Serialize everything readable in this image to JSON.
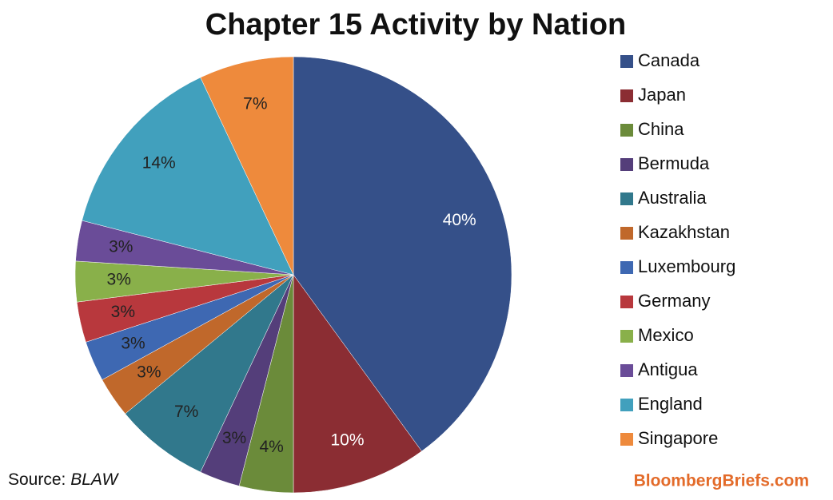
{
  "chart_data": {
    "type": "pie",
    "title": "Chapter 15 Activity by Nation",
    "categories": [
      "Canada",
      "Japan",
      "China",
      "Bermuda",
      "Australia",
      "Kazakhstan",
      "Luxembourg",
      "Germany",
      "Mexico",
      "Antigua",
      "England",
      "Singapore"
    ],
    "values": [
      40,
      10,
      4,
      3,
      7,
      3,
      3,
      3,
      3,
      3,
      14,
      7
    ],
    "value_labels": [
      "40%",
      "10%",
      "4%",
      "3%",
      "7%",
      "3%",
      "3%",
      "3%",
      "3%",
      "3%",
      "14%",
      "7%"
    ],
    "colors": [
      "#355089",
      "#8b2d33",
      "#6b8b3a",
      "#543e7a",
      "#31788c",
      "#c0682b",
      "#3e68b2",
      "#b8383d",
      "#89b04a",
      "#6a4c98",
      "#41a0bd",
      "#ee8a3c"
    ],
    "label_colors": [
      "#ffffff",
      "#ffffff",
      "#222222",
      "#222222",
      "#222222",
      "#222222",
      "#222222",
      "#222222",
      "#222222",
      "#222222",
      "#222222",
      "#222222"
    ],
    "legend": "right",
    "source_label": "Source:",
    "source": "BLAW",
    "watermark": "BloombergBriefs.com"
  }
}
